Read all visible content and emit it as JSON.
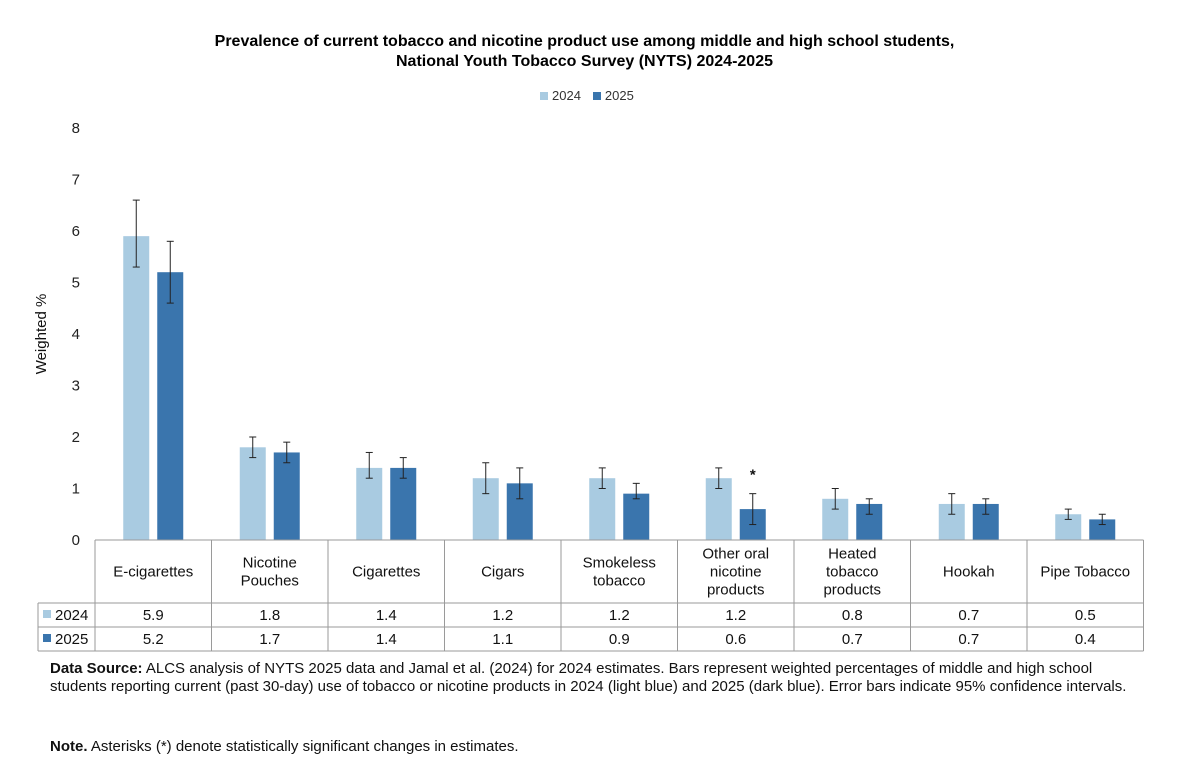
{
  "chart_data": {
    "type": "bar",
    "title_line1": "Prevalence of current tobacco and nicotine product use among middle and high school students,",
    "title_line2": "National Youth Tobacco Survey (NYTS) 2024-2025",
    "ylabel": "Weighted  %",
    "ylim": [
      0,
      8
    ],
    "yticks": [
      "0",
      "1",
      "2",
      "3",
      "4",
      "5",
      "6",
      "7",
      "8"
    ],
    "categories": [
      [
        "E-cigarettes"
      ],
      [
        "Nicotine",
        "Pouches"
      ],
      [
        "Cigarettes"
      ],
      [
        "Cigars"
      ],
      [
        "Smokeless",
        "tobacco"
      ],
      [
        "Other oral",
        "nicotine",
        "products"
      ],
      [
        "Heated",
        "tobacco",
        "products"
      ],
      [
        "Hookah"
      ],
      [
        "Pipe Tobacco"
      ]
    ],
    "series": [
      {
        "name": "2024",
        "color": "#a9cbe1",
        "values": [
          5.9,
          1.8,
          1.4,
          1.2,
          1.2,
          1.2,
          0.8,
          0.7,
          0.5
        ],
        "labels": [
          "5.9",
          "1.8",
          "1.4",
          "1.2",
          "1.2",
          "1.2",
          "0.8",
          "0.7",
          "0.5"
        ],
        "ci_low": [
          5.3,
          1.6,
          1.2,
          0.9,
          1.0,
          1.0,
          0.6,
          0.5,
          0.4
        ],
        "ci_high": [
          6.6,
          2.0,
          1.7,
          1.5,
          1.4,
          1.4,
          1.0,
          0.9,
          0.6
        ]
      },
      {
        "name": "2025",
        "color": "#3a75ad",
        "values": [
          5.2,
          1.7,
          1.4,
          1.1,
          0.9,
          0.6,
          0.7,
          0.7,
          0.4
        ],
        "labels": [
          "5.2",
          "1.7",
          "1.4",
          "1.1",
          "0.9",
          "0.6",
          "0.7",
          "0.7",
          "0.4"
        ],
        "ci_low": [
          4.6,
          1.5,
          1.2,
          0.8,
          0.8,
          0.3,
          0.5,
          0.5,
          0.3
        ],
        "ci_high": [
          5.8,
          1.9,
          1.6,
          1.4,
          1.1,
          0.9,
          0.8,
          0.8,
          0.5
        ]
      }
    ],
    "significance_marker": "*",
    "significant_category_index": 5,
    "legend_position": "top-center",
    "grid": false
  },
  "footnotes": {
    "source_label": "Data Source:",
    "source_text": " ALCS analysis of NYTS 2025 data and Jamal et al. (2024) for 2024 estimates. Bars represent weighted percentages of middle and high school students reporting current (past 30-day) use of tobacco or nicotine products in 2024 (light blue) and 2025 (dark blue). Error bars indicate 95% confidence intervals.",
    "note_label": "Note.",
    "note_text": " Asterisks (*) denote statistically significant changes in estimates."
  }
}
